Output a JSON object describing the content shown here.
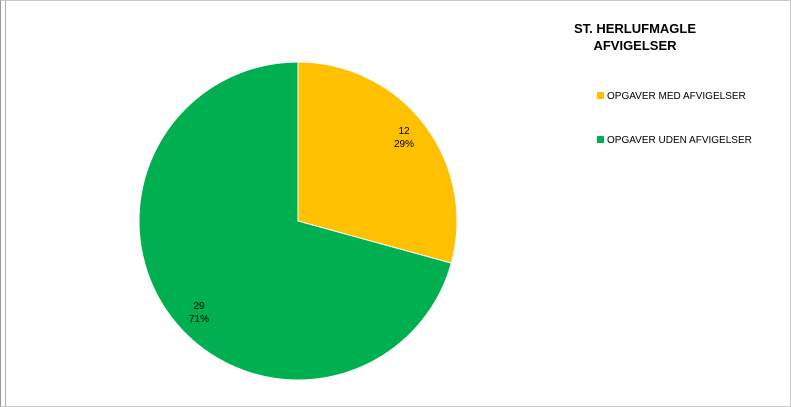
{
  "chart_data": {
    "type": "pie",
    "title_lines": [
      "ST. HERLUFMAGLE",
      "AFVIGELSER"
    ],
    "categories": [
      "OPGAVER MED AFVIGELSER",
      "OPGAVER UDEN AFVIGELSER"
    ],
    "values": [
      12,
      29
    ],
    "percent_labels": [
      "29%",
      "71%"
    ],
    "colors": [
      "#FFC000",
      "#00B050"
    ],
    "legend_position": "right"
  }
}
